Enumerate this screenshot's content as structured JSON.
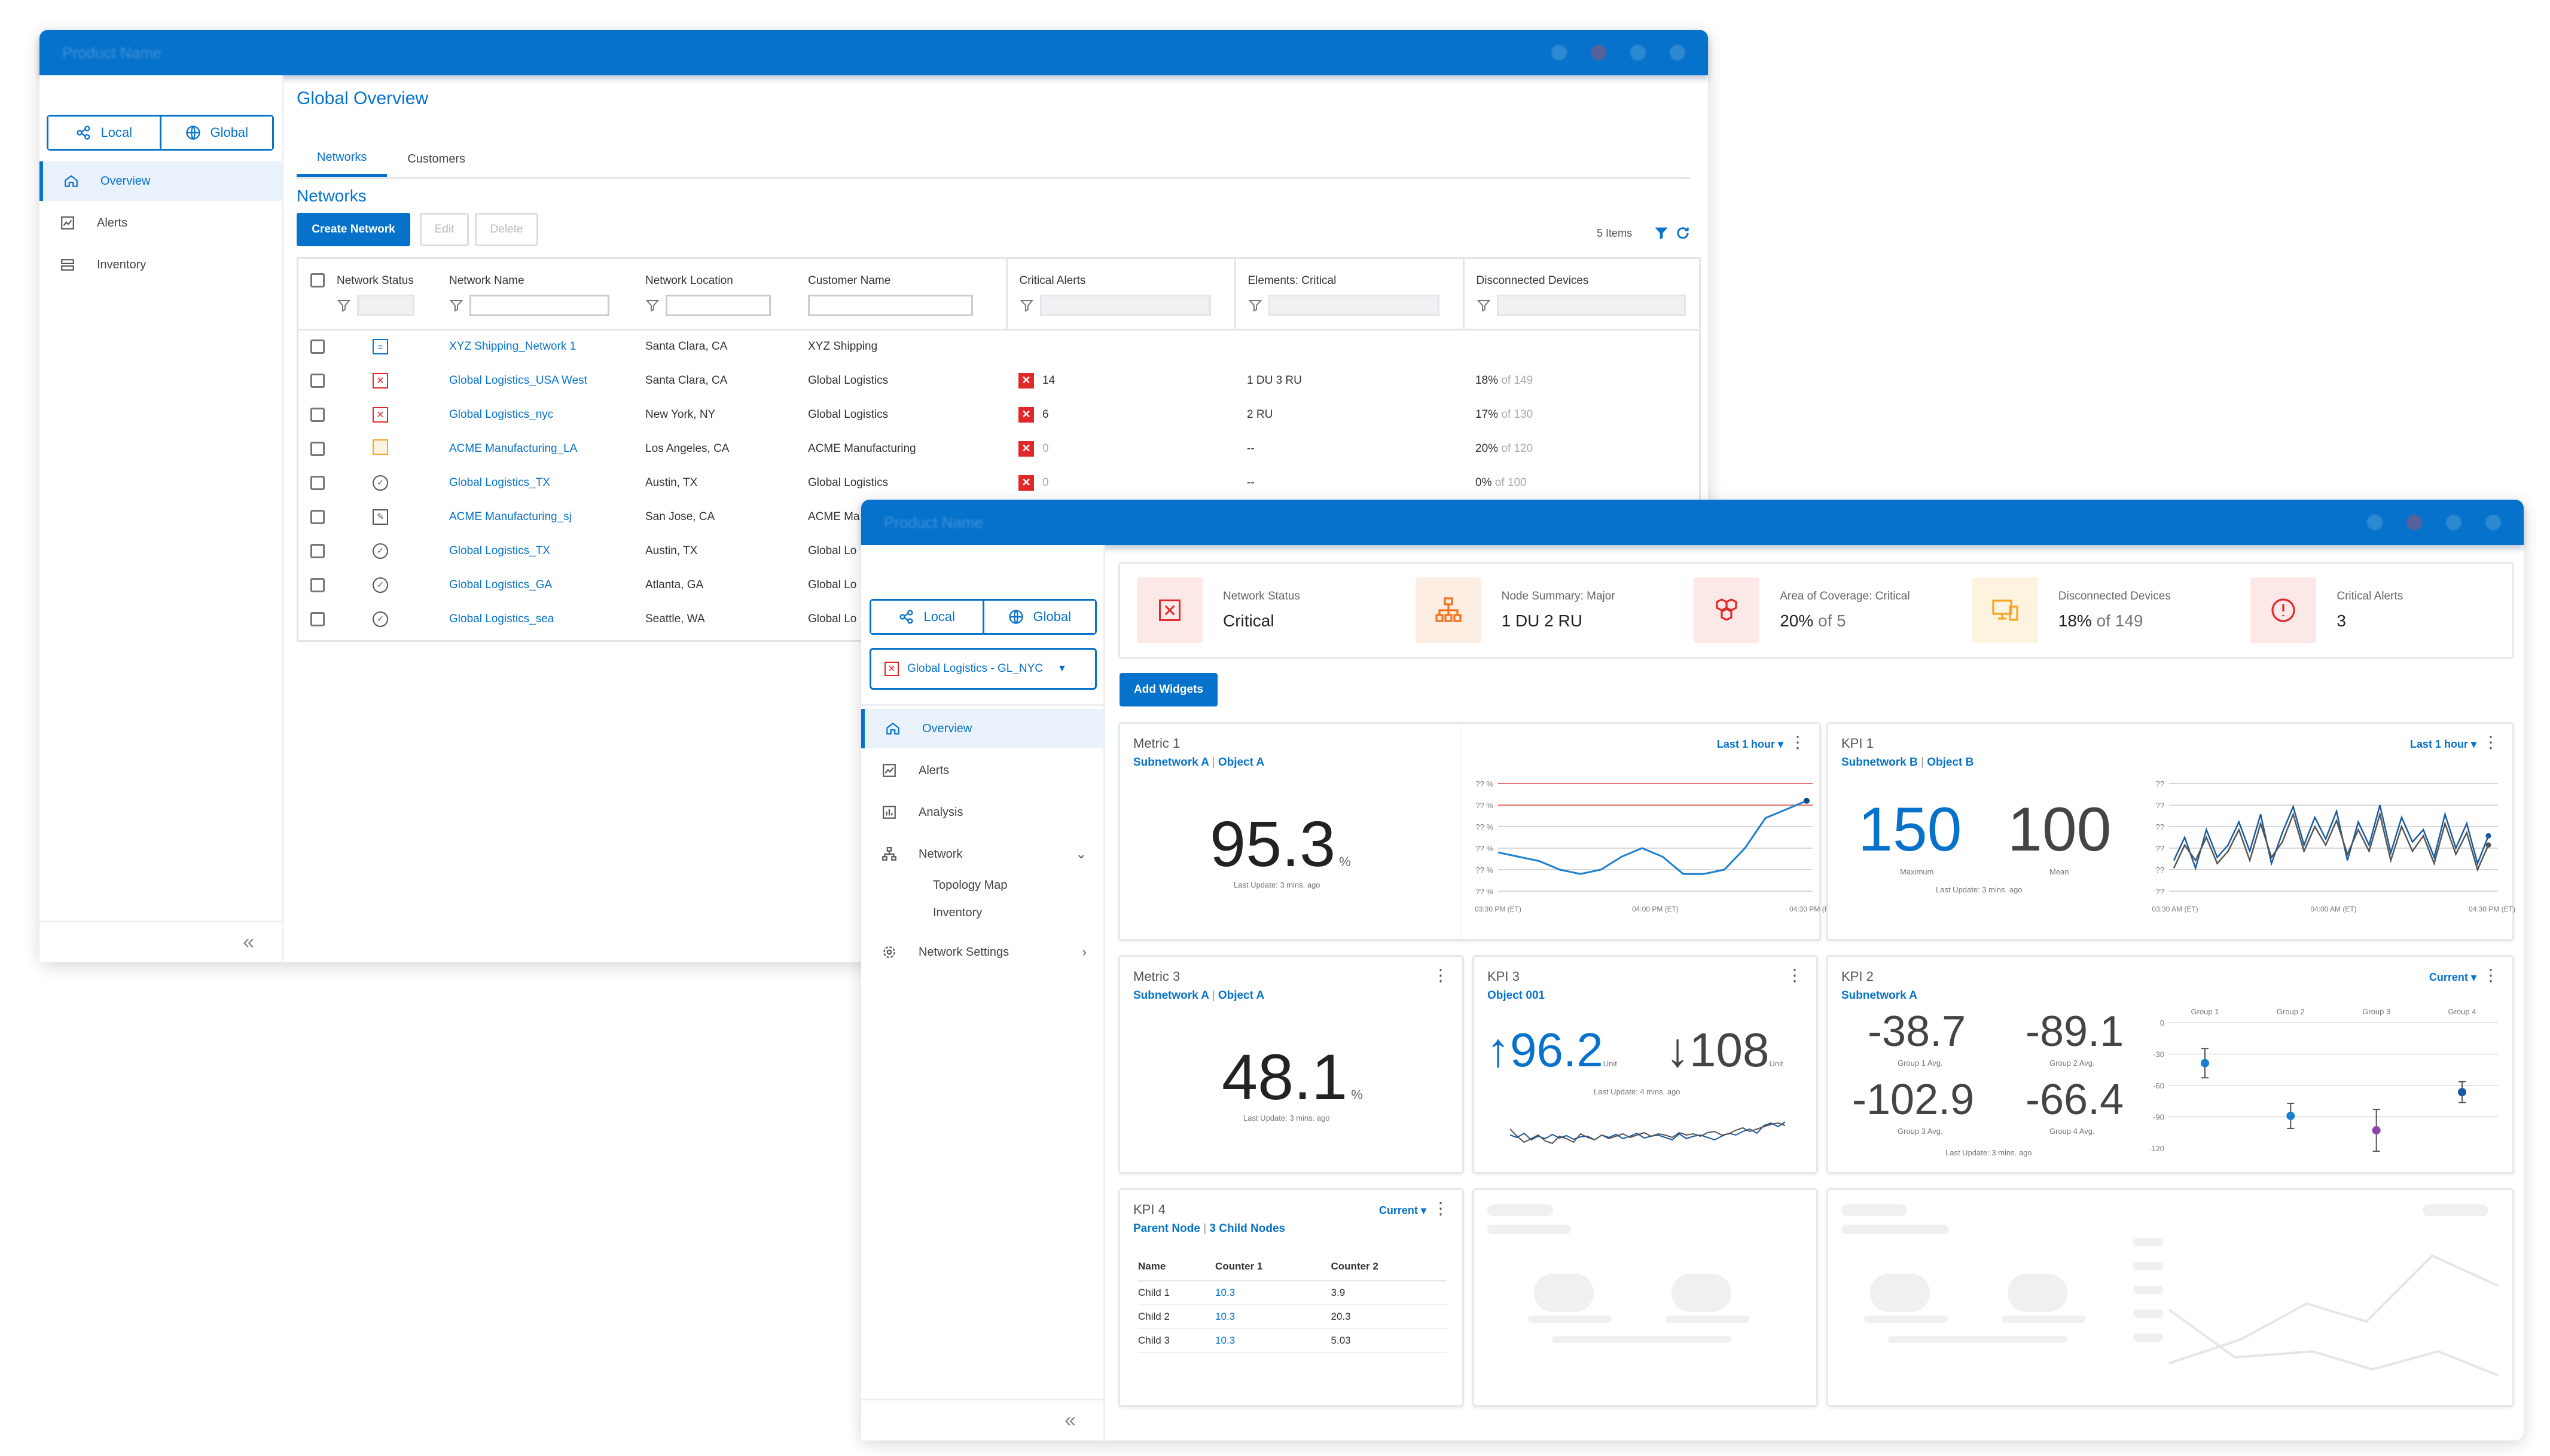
{
  "app": {
    "product_name": "Product Name"
  },
  "scope": {
    "local": "Local",
    "global": "Global"
  },
  "back": {
    "nav": [
      "Overview",
      "Alerts",
      "Inventory"
    ],
    "page_title": "Global Overview",
    "tabs": [
      "Networks",
      "Customers"
    ],
    "section_title": "Networks",
    "buttons": {
      "create": "Create Network",
      "edit": "Edit",
      "delete": "Delete"
    },
    "item_count": "5 Items",
    "columns": [
      "Network Status",
      "Network Name",
      "Network Location",
      "Customer Name",
      "Critical Alerts",
      "Elements: Critical",
      "Disconnected Devices"
    ],
    "rows": [
      {
        "status": "ok-info",
        "name": "XYZ Shipping_Network 1",
        "location": "Santa Clara, CA",
        "customer": "XYZ Shipping",
        "alerts": "",
        "elements": "",
        "disc_pct": "",
        "disc_of": ""
      },
      {
        "status": "critical",
        "name": "Global Logistics_USA West",
        "location": "Santa Clara, CA",
        "customer": "Global Logistics",
        "alerts": "14",
        "elements": "1 DU   3 RU",
        "disc_pct": "18%",
        "disc_of": "of 149"
      },
      {
        "status": "critical",
        "name": "Global Logistics_nyc",
        "location": "New York, NY",
        "customer": "Global Logistics",
        "alerts": "6",
        "elements": "2 RU",
        "disc_pct": "17%",
        "disc_of": "of 130"
      },
      {
        "status": "warning",
        "name": "ACME Manufacturing_LA",
        "location": "Los Angeles, CA",
        "customer": "ACME Manufacturing",
        "alerts": "0",
        "elements": "--",
        "disc_pct": "20%",
        "disc_of": "of 120"
      },
      {
        "status": "ok",
        "name": "Global Logistics_TX",
        "location": "Austin, TX",
        "customer": "Global Logistics",
        "alerts": "0",
        "elements": "--",
        "disc_pct": "0%",
        "disc_of": "of 100"
      },
      {
        "status": "edit",
        "name": "ACME Manufacturing_sj",
        "location": "San Jose, CA",
        "customer": "ACME Ma",
        "alerts": "",
        "elements": "",
        "disc_pct": "",
        "disc_of": ""
      },
      {
        "status": "ok",
        "name": "Global Logistics_TX",
        "location": "Austin, TX",
        "customer": "Global Lo",
        "alerts": "",
        "elements": "",
        "disc_pct": "",
        "disc_of": ""
      },
      {
        "status": "ok",
        "name": "Global Logistics_GA",
        "location": "Atlanta, GA",
        "customer": "Global Lo",
        "alerts": "",
        "elements": "",
        "disc_pct": "",
        "disc_of": ""
      },
      {
        "status": "ok",
        "name": "Global Logistics_sea",
        "location": "Seattle, WA",
        "customer": "Global Lo",
        "alerts": "",
        "elements": "",
        "disc_pct": "",
        "disc_of": ""
      }
    ]
  },
  "front": {
    "network_select": "Global Logistics - GL_NYC",
    "nav": [
      "Overview",
      "Alerts",
      "Analysis",
      "Network",
      "Network Settings"
    ],
    "subnav": [
      "Topology Map",
      "Inventory"
    ],
    "summary": [
      {
        "label": "Network Status",
        "value": "Critical",
        "icon": "x-square-icon",
        "color": "#e12828",
        "bg": "#fde8e8"
      },
      {
        "label": "Node Summary: Major",
        "value": "1 DU   2 RU",
        "icon": "org-chart-icon",
        "color": "#f2711c",
        "bg": "#fdeee3"
      },
      {
        "label": "Area of Coverage: Critical",
        "value": "20%",
        "value_suffix": "of 5",
        "icon": "hexagon-cluster-icon",
        "color": "#e12828",
        "bg": "#fde8e8"
      },
      {
        "label": "Disconnected Devices",
        "value": "18%",
        "value_suffix": "of 149",
        "icon": "devices-icon",
        "color": "#f5a623",
        "bg": "#fdf3df"
      },
      {
        "label": "Critical Alerts",
        "value": "3",
        "icon": "alert-circle-icon",
        "color": "#e12828",
        "bg": "#fde8e8"
      }
    ],
    "add_widgets": "Add Widgets",
    "metric1": {
      "title": "Metric 1",
      "sub_a": "Subnetwork A",
      "sub_b": "Object A",
      "range": "Last 1 hour",
      "value": "95.3",
      "unit": "%",
      "updated": "Last Update: 3 mins. ago",
      "y_tick": "?? %",
      "x_ticks": [
        "03:30 PM (ET)",
        "04:00 PM (ET)",
        "04:30 PM (ET)"
      ]
    },
    "kpi1": {
      "title": "KPI 1",
      "sub_a": "Subnetwork B",
      "sub_b": "Object B",
      "range": "Last 1 hour",
      "max": "150",
      "max_label": "Maximum",
      "mean": "100",
      "mean_label": "Mean",
      "updated": "Last Update: 3 mins. ago",
      "y_tick": "??",
      "x_ticks": [
        "03:30 AM (ET)",
        "04:00 AM (ET)",
        "04:30 PM (ET)"
      ]
    },
    "metric3": {
      "title": "Metric 3",
      "sub_a": "Subnetwork A",
      "sub_b": "Object A",
      "value": "48.1",
      "unit": "%",
      "updated": "Last Update: 3 mins. ago"
    },
    "kpi3": {
      "title": "KPI 3",
      "sub": "Object 001",
      "up": "96.2",
      "down": "108",
      "unit": "Unit",
      "updated": "Last Update: 4 mins. ago"
    },
    "kpi2": {
      "title": "KPI 2",
      "sub": "Subnetwork A",
      "range": "Current",
      "values": [
        "-38.7",
        "-89.1",
        "-102.9",
        "-66.4"
      ],
      "labels": [
        "Group 1 Avg.",
        "Group 2 Avg.",
        "Group 3 Avg.",
        "Group 4 Avg."
      ],
      "updated": "Last Update: 3 mins. ago",
      "groups": [
        "Group 1",
        "Group 2",
        "Group 3",
        "Group 4"
      ],
      "y_ticks": [
        "0",
        "-30",
        "-60",
        "-90",
        "-120"
      ]
    },
    "kpi4": {
      "title": "KPI 4",
      "sub_a": "Parent Node",
      "sub_b": "3 Child Nodes",
      "range": "Current",
      "cols": [
        "Name",
        "Counter 1",
        "Counter 2"
      ],
      "rows": [
        [
          "Child 1",
          "10.3",
          "3.9"
        ],
        [
          "Child 2",
          "10.3",
          "20.3"
        ],
        [
          "Child 3",
          "10.3",
          "5.03"
        ]
      ]
    }
  },
  "chart_data": [
    {
      "type": "line",
      "series": [
        {
          "values": [
            84,
            83,
            82,
            80,
            79,
            80,
            83,
            85,
            83,
            79,
            79,
            80,
            85,
            92,
            94,
            96
          ]
        }
      ]
    },
    {
      "type": "line",
      "series": [
        {
          "values": [
            60,
            75,
            55,
            80,
            62,
            70,
            85,
            66,
            90,
            58,
            78,
            95,
            70,
            88,
            74,
            92,
            60,
            85,
            70,
            96,
            65,
            88,
            72,
            80,
            62,
            90,
            68,
            84,
            58,
            76
          ]
        },
        {
          "values": [
            55,
            70,
            60,
            75,
            58,
            66,
            80,
            60,
            84,
            62,
            72,
            90,
            66,
            82,
            70,
            86,
            64,
            80,
            66,
            90,
            60,
            82,
            66,
            76,
            58,
            84,
            64,
            78,
            54,
            70
          ]
        }
      ]
    },
    {
      "type": "scatter",
      "categories": [
        "Group 1",
        "Group 2",
        "Group 3",
        "Group 4"
      ],
      "series": [
        {
          "values": [
            -38.7,
            -89.1,
            -102.9,
            -66.4
          ]
        }
      ],
      "ylim": [
        -120,
        0
      ]
    }
  ]
}
